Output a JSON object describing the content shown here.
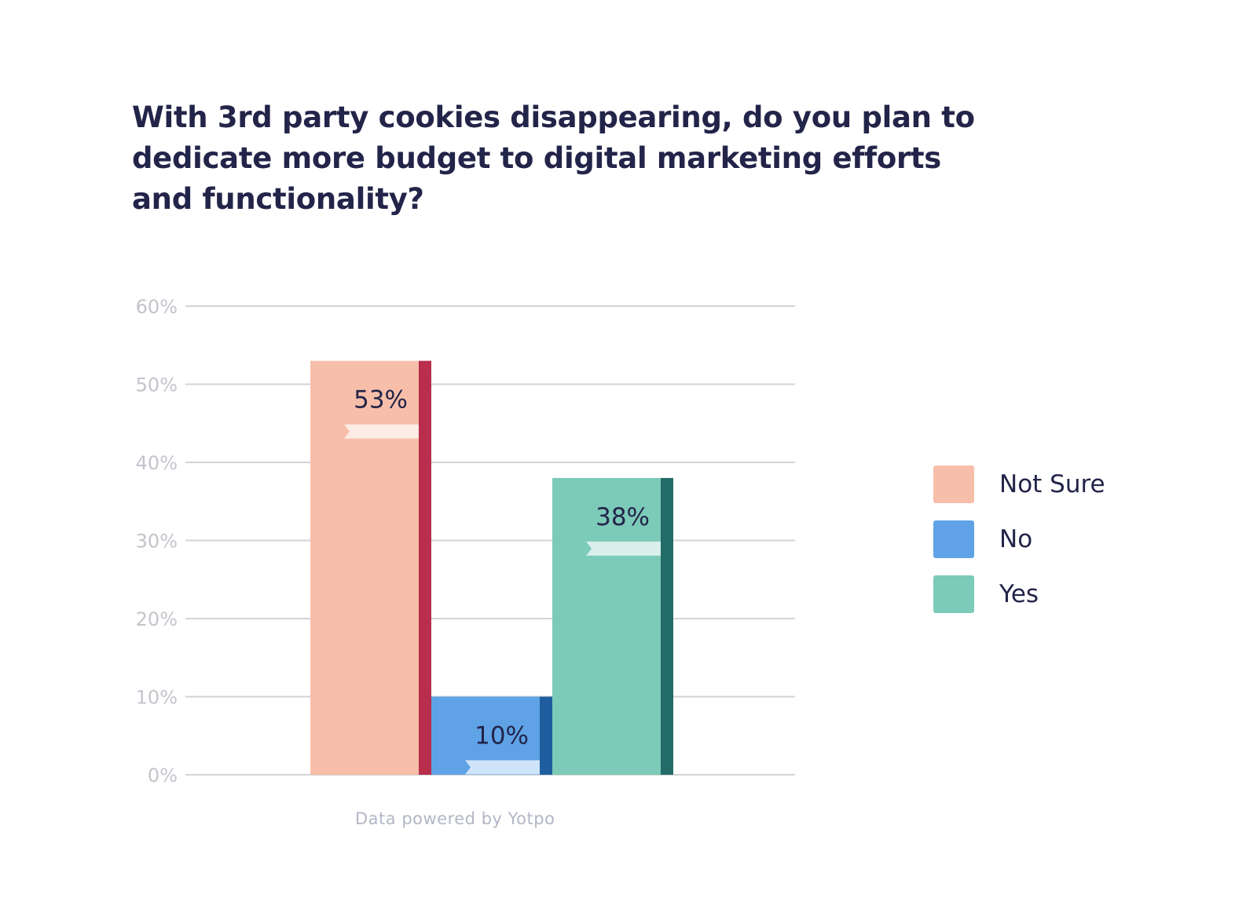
{
  "title_lines": [
    "With 3rd party cookies disappearing, do you plan to",
    "dedicate more budget to digital marketing efforts",
    "and functionality?"
  ],
  "footer": "Data powered by Yotpo",
  "legend": [
    {
      "label": "Not Sure",
      "color": "#f7bfaa"
    },
    {
      "label": "No",
      "color": "#5fa3e6"
    },
    {
      "label": "Yes",
      "color": "#7ccab8"
    }
  ],
  "chart_data": {
    "type": "bar",
    "title": "With 3rd party cookies disappearing, do you plan to dedicate more budget to digital marketing efforts and functionality?",
    "categories": [
      "Not Sure",
      "No",
      "Yes"
    ],
    "values": [
      53,
      10,
      38
    ],
    "value_labels": [
      "53%",
      "10%",
      "38%"
    ],
    "unit": "%",
    "ylim": [
      0,
      60
    ],
    "yticks": [
      0,
      10,
      20,
      30,
      40,
      50,
      60
    ],
    "ytick_labels": [
      "0%",
      "10%",
      "20%",
      "30%",
      "40%",
      "50%",
      "60%"
    ],
    "xlabel": "",
    "ylabel": "",
    "grid": true,
    "legend_position": "right",
    "colors": {
      "face": [
        "#f7bfaa",
        "#5fa3e6",
        "#7ccab8"
      ],
      "edge": [
        "#b82e4c",
        "#1f5e9e",
        "#236b68"
      ],
      "ribbon": "#ffffff",
      "grid": "#d3d3d3",
      "tick_label": "#c4c4cc",
      "value_label": "#232449"
    }
  }
}
